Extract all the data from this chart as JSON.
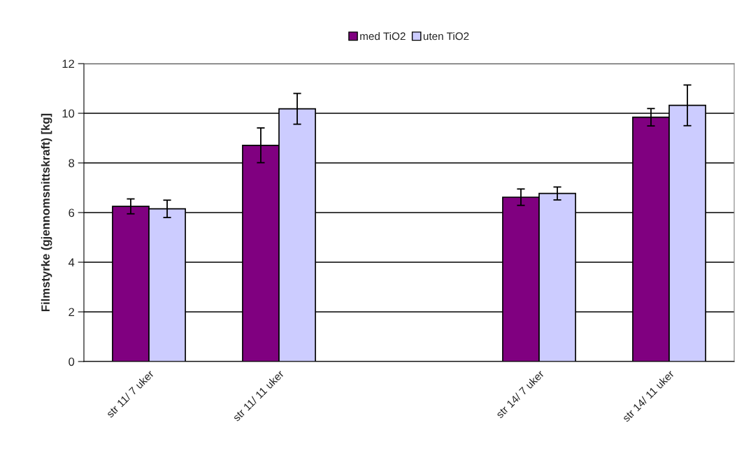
{
  "chart_data": {
    "type": "bar",
    "ylabel": "Filmstyrke (gjennomsnittskraft) [kg]",
    "categories": [
      "str 11/ 7 uker",
      "str 11/ 11 uker",
      null,
      "str 14/ 7 uker",
      "str 14/ 11 uker"
    ],
    "series": [
      {
        "name": "med TiO2",
        "color": "#800080",
        "values": [
          6.25,
          8.71,
          null,
          6.62,
          9.84
        ],
        "errors": [
          0.3,
          0.7,
          null,
          0.33,
          0.35
        ]
      },
      {
        "name": "uten TiO2",
        "color": "#ccccff",
        "values": [
          6.15,
          10.18,
          null,
          6.77,
          10.32
        ],
        "errors": [
          0.35,
          0.62,
          null,
          0.26,
          0.82
        ]
      }
    ],
    "ylim": [
      0,
      12
    ],
    "yticks": [
      0,
      2,
      4,
      6,
      8,
      10,
      12
    ],
    "grid": "y",
    "legend": "top"
  }
}
